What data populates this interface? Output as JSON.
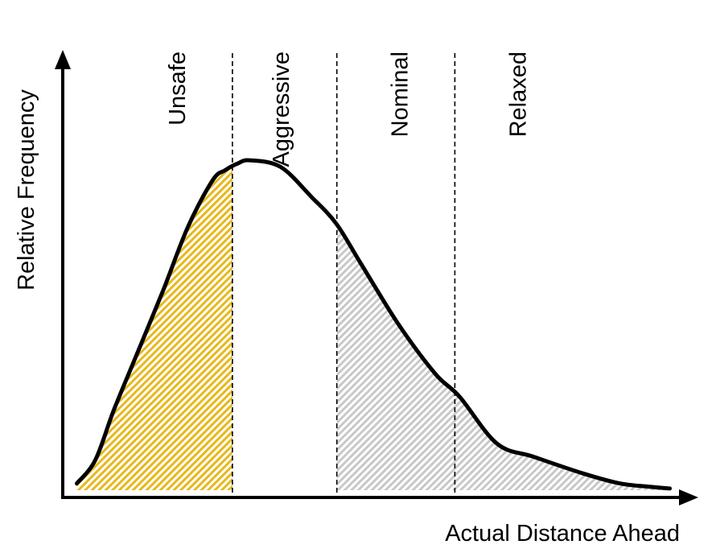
{
  "chart_data": {
    "type": "area",
    "xlabel": "Actual Distance Ahead",
    "ylabel": "Relative Frequency",
    "xlim": [
      0,
      100
    ],
    "ylim": [
      0,
      100
    ],
    "grid": false,
    "zones": [
      {
        "label": "Unsafe",
        "start": 0,
        "end": 27.2,
        "shaded": true,
        "color": "#E8B81C"
      },
      {
        "label": "Aggressive",
        "start": 27.2,
        "end": 44.1,
        "shaded": false
      },
      {
        "label": "Nominal",
        "start": 44.1,
        "end": 63.2,
        "shaded": true,
        "color": "#C8C8C8"
      },
      {
        "label": "Relaxed",
        "start": 63.2,
        "end": 100,
        "shaded": true,
        "color": "#C8C8C8"
      }
    ],
    "dividers": [
      27.2,
      44.1,
      63.2
    ],
    "curve": {
      "x": [
        2,
        5,
        8,
        12,
        16,
        20,
        24,
        26,
        28,
        30,
        35,
        40,
        44,
        48,
        54,
        60,
        64,
        70,
        76,
        84,
        90,
        95,
        98
      ],
      "y": [
        2,
        9,
        24,
        42,
        60,
        79,
        93,
        96,
        98,
        99,
        97,
        88,
        80,
        68,
        50,
        35,
        28,
        14,
        10,
        5,
        2,
        1,
        0.5
      ]
    }
  }
}
